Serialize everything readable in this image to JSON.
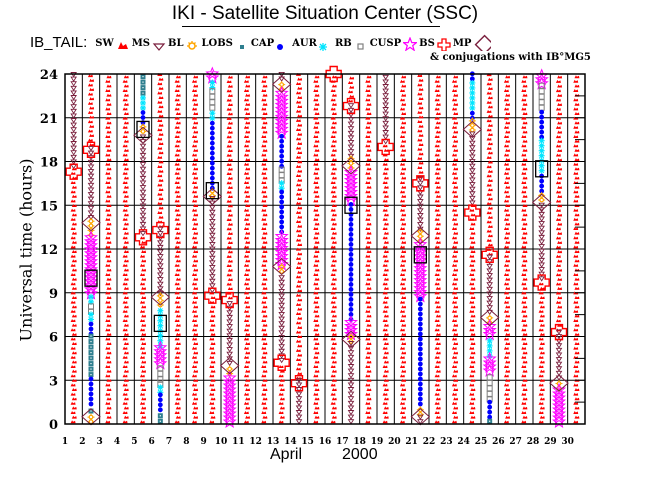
{
  "chart_data": {
    "type": "scatter",
    "title": "IKI - Satellite Situation Center (SSC)",
    "legend_heading": "IB_TAIL:",
    "subtitle": "& conjugations with IB°MG5",
    "xlabel_month": "April",
    "xlabel_year": "2000",
    "ylabel": "Universal time (hours)",
    "xlim": [
      1,
      30
    ],
    "ylim": [
      0,
      24
    ],
    "x_ticks": [
      1,
      2,
      3,
      4,
      5,
      6,
      7,
      8,
      9,
      10,
      11,
      12,
      13,
      14,
      15,
      16,
      17,
      18,
      19,
      20,
      21,
      22,
      23,
      24,
      25,
      26,
      27,
      28,
      29,
      30
    ],
    "y_ticks": [
      0,
      3,
      6,
      9,
      12,
      15,
      18,
      21,
      24
    ],
    "grid": true,
    "legend": [
      {
        "key": "SW",
        "label": "SW",
        "marker": "sw",
        "color": "#ff0000"
      },
      {
        "key": "MS",
        "label": "MS",
        "marker": "triangle-down",
        "color": "#7a1f3d"
      },
      {
        "key": "BL",
        "label": "BL",
        "marker": "sun",
        "color": "#ffa500"
      },
      {
        "key": "LOBS",
        "label": "LOBS",
        "marker": "square-small",
        "color": "#2f7f8f"
      },
      {
        "key": "CAP",
        "label": "CAP",
        "marker": "dot",
        "color": "#0000ff"
      },
      {
        "key": "AUR",
        "label": "AUR",
        "marker": "asterisk",
        "color": "#00e5ff"
      },
      {
        "key": "RB",
        "label": "RB",
        "marker": "square-open",
        "color": "#808080"
      },
      {
        "key": "CUSP",
        "label": "CUSP",
        "marker": "star",
        "color": "#ff00ff"
      },
      {
        "key": "BS",
        "label": "BS",
        "marker": "cross",
        "color": "#ff0000"
      },
      {
        "key": "MP",
        "label": "MP",
        "marker": "diamond",
        "color": "#7a1f3d"
      }
    ],
    "legend_order_labels": [
      "SW",
      "MS",
      "BL",
      "LOBS",
      "CAP",
      "AUR",
      "RB",
      "CUSP",
      "BS",
      "MP"
    ],
    "colors": {
      "sw": "#ff0000",
      "ms": "#7a1f3d",
      "bl": "#ffa500",
      "lobs": "#2f7f8f",
      "cap": "#0000ff",
      "aur": "#00e5ff",
      "rb": "#808080",
      "cusp": "#ff00ff",
      "bs": "#ff0000",
      "mp": "#7a1f3d",
      "conj": "#000000"
    },
    "days": [
      {
        "day": 1,
        "segments": [
          [
            "MS",
            17.5,
            24
          ],
          [
            "SW",
            0,
            17.5
          ]
        ],
        "bs": [
          17.3
        ],
        "mp": [],
        "conj": []
      },
      {
        "day": 2,
        "segments": [
          [
            "SW",
            19,
            24
          ],
          [
            "MS",
            14,
            19
          ],
          [
            "BL",
            12.8,
            14
          ],
          [
            "CUSP",
            8.8,
            12.8
          ],
          [
            "AUR",
            8.2,
            8.8
          ],
          [
            "RB",
            7.5,
            8.2
          ],
          [
            "AUR",
            7,
            7.5
          ],
          [
            "CAP",
            6,
            7
          ],
          [
            "LOBS",
            3.2,
            6
          ],
          [
            "CAP",
            1.2,
            3.2
          ],
          [
            "LOBS",
            0.7,
            1.2
          ],
          [
            "BL",
            0,
            0.7
          ]
        ],
        "bs": [
          18.8
        ],
        "mp": [
          13.8,
          0.5
        ],
        "conj": [
          10
        ]
      },
      {
        "day": 3,
        "segments": [
          [
            "SW",
            0,
            24
          ]
        ],
        "bs": [],
        "mp": [],
        "conj": []
      },
      {
        "day": 4,
        "segments": [
          [
            "SW",
            0,
            24
          ]
        ],
        "bs": [],
        "mp": [],
        "conj": []
      },
      {
        "day": 5,
        "segments": [
          [
            "LOBS",
            22.5,
            24
          ],
          [
            "AUR",
            21.5,
            22.5
          ],
          [
            "CAP",
            20.5,
            21.5
          ],
          [
            "BL",
            19.9,
            20.5
          ],
          [
            "MS",
            12.9,
            19.9
          ],
          [
            "SW",
            0,
            12.9
          ]
        ],
        "bs": [
          12.8
        ],
        "mp": [
          19.8
        ],
        "conj": [
          20.2
        ]
      },
      {
        "day": 6,
        "segments": [
          [
            "SW",
            13.4,
            24
          ],
          [
            "MS",
            8.8,
            13.4
          ],
          [
            "BL",
            8,
            8.8
          ],
          [
            "AUR",
            5.2,
            8
          ],
          [
            "CUSP",
            4,
            5.2
          ],
          [
            "RB",
            2.5,
            4
          ],
          [
            "AUR",
            2,
            2.5
          ],
          [
            "CAP",
            0.8,
            2
          ],
          [
            "LOBS",
            0,
            0.8
          ]
        ],
        "bs": [
          13.3
        ],
        "mp": [
          8.7
        ],
        "conj": [
          6.9
        ]
      },
      {
        "day": 7,
        "segments": [
          [
            "SW",
            0,
            24
          ]
        ],
        "bs": [],
        "mp": [],
        "conj": []
      },
      {
        "day": 8,
        "segments": [
          [
            "SW",
            0,
            24
          ]
        ],
        "bs": [],
        "mp": [],
        "conj": []
      },
      {
        "day": 9,
        "segments": [
          [
            "CUSP",
            23.6,
            24
          ],
          [
            "AUR",
            22.9,
            23.6
          ],
          [
            "RB",
            21.5,
            22.9
          ],
          [
            "AUR",
            20.8,
            21.5
          ],
          [
            "CAP",
            16,
            20.8
          ],
          [
            "BL",
            15.5,
            16
          ],
          [
            "MS",
            9,
            15.5
          ],
          [
            "SW",
            0,
            9
          ]
        ],
        "bs": [
          8.8
        ],
        "mp": [
          15.6
        ],
        "conj": [
          16
        ]
      },
      {
        "day": 10,
        "segments": [
          [
            "SW",
            8.5,
            24
          ],
          [
            "MS",
            4,
            8.5
          ],
          [
            "BL",
            3.3,
            4
          ],
          [
            "CUSP",
            0,
            3.3
          ]
        ],
        "bs": [
          8.5
        ],
        "mp": [
          4
        ],
        "conj": []
      },
      {
        "day": 11,
        "segments": [
          [
            "SW",
            0,
            24
          ]
        ],
        "bs": [],
        "mp": [],
        "conj": []
      },
      {
        "day": 12,
        "segments": [
          [
            "SW",
            0,
            24
          ]
        ],
        "bs": [],
        "mp": [],
        "conj": []
      },
      {
        "day": 13,
        "segments": [
          [
            "MS",
            23.5,
            24
          ],
          [
            "BL",
            22.8,
            23.5
          ],
          [
            "CUSP",
            19.8,
            22.8
          ],
          [
            "CAP",
            17.5,
            19.8
          ],
          [
            "RB",
            16.5,
            17.5
          ],
          [
            "AUR",
            16,
            16.5
          ],
          [
            "CAP",
            13,
            16
          ],
          [
            "CUSP",
            10.8,
            13
          ],
          [
            "BL",
            10.3,
            10.8
          ],
          [
            "MS",
            4.2,
            10.3
          ],
          [
            "SW",
            0,
            4.2
          ]
        ],
        "bs": [
          4.2
        ],
        "mp": [
          23.3,
          10.8
        ],
        "conj": []
      },
      {
        "day": 14,
        "segments": [
          [
            "SW",
            3,
            24
          ],
          [
            "MS",
            0,
            3
          ]
        ],
        "bs": [
          2.8
        ],
        "mp": [],
        "conj": []
      },
      {
        "day": 15,
        "segments": [
          [
            "SW",
            0,
            24
          ]
        ],
        "bs": [],
        "mp": [],
        "conj": []
      },
      {
        "day": 16,
        "segments": [
          [
            "SW",
            0,
            24
          ]
        ],
        "bs": [
          24
        ],
        "mp": [],
        "conj": []
      },
      {
        "day": 17,
        "segments": [
          [
            "SW",
            22,
            24
          ],
          [
            "MS",
            18.2,
            22
          ],
          [
            "BL",
            17.4,
            18.2
          ],
          [
            "CUSP",
            15.2,
            17.4
          ],
          [
            "CAP",
            7,
            15.2
          ],
          [
            "CUSP",
            6,
            7
          ],
          [
            "BL",
            5.5,
            6
          ],
          [
            "MS",
            0,
            5.5
          ]
        ],
        "bs": [
          21.8
        ],
        "mp": [
          17.7,
          5.8
        ],
        "conj": [
          15
        ]
      },
      {
        "day": 18,
        "segments": [
          [
            "SW",
            0,
            24
          ]
        ],
        "bs": [],
        "mp": [],
        "conj": []
      },
      {
        "day": 19,
        "segments": [
          [
            "MS",
            19.2,
            24
          ],
          [
            "SW",
            0,
            19.2
          ]
        ],
        "bs": [
          19
        ],
        "mp": [],
        "conj": []
      },
      {
        "day": 20,
        "segments": [
          [
            "SW",
            0,
            24
          ]
        ],
        "bs": [],
        "mp": [],
        "conj": []
      },
      {
        "day": 21,
        "segments": [
          [
            "SW",
            16.8,
            24
          ],
          [
            "MS",
            13.2,
            16.8
          ],
          [
            "BL",
            12.4,
            13.2
          ],
          [
            "CUSP",
            8.6,
            12.4
          ],
          [
            "CAP",
            1.2,
            8.6
          ],
          [
            "BL",
            0.5,
            1.2
          ],
          [
            "MS",
            0,
            0.5
          ]
        ],
        "bs": [
          16.5
        ],
        "mp": [
          12.9,
          0.5
        ],
        "conj": [
          11.6
        ]
      },
      {
        "day": 22,
        "segments": [
          [
            "SW",
            0,
            24
          ]
        ],
        "bs": [],
        "mp": [],
        "conj": []
      },
      {
        "day": 23,
        "segments": [
          [
            "SW",
            0,
            24
          ]
        ],
        "bs": [],
        "mp": [],
        "conj": []
      },
      {
        "day": 24,
        "segments": [
          [
            "CAP",
            23.5,
            24
          ],
          [
            "AUR",
            21.5,
            23.5
          ],
          [
            "CAP",
            20.8,
            21.5
          ],
          [
            "BL",
            20,
            20.8
          ],
          [
            "MS",
            15,
            20
          ],
          [
            "SW",
            0,
            15
          ]
        ],
        "bs": [
          14.5
        ],
        "mp": [
          20.2
        ],
        "conj": []
      },
      {
        "day": 25,
        "segments": [
          [
            "SW",
            11.5,
            24
          ],
          [
            "MS",
            7.5,
            11.5
          ],
          [
            "BL",
            6.8,
            7.5
          ],
          [
            "CUSP",
            6,
            6.8
          ],
          [
            "AUR",
            4.5,
            6
          ],
          [
            "CUSP",
            3.5,
            4.5
          ],
          [
            "RB",
            1.5,
            3.5
          ],
          [
            "CAP",
            0.3,
            1.5
          ],
          [
            "LOBS",
            0,
            0.3
          ]
        ],
        "bs": [
          11.6
        ],
        "mp": [
          7.3
        ],
        "conj": []
      },
      {
        "day": 26,
        "segments": [
          [
            "SW",
            0,
            24
          ]
        ],
        "bs": [],
        "mp": [],
        "conj": []
      },
      {
        "day": 27,
        "segments": [
          [
            "SW",
            0,
            24
          ]
        ],
        "bs": [],
        "mp": [],
        "conj": []
      },
      {
        "day": 28,
        "segments": [
          [
            "CUSP",
            23.2,
            24
          ],
          [
            "RB",
            21.5,
            23.2
          ],
          [
            "CAP",
            19.5,
            21.5
          ],
          [
            "AUR",
            17.2,
            19.5
          ],
          [
            "CAP",
            15.8,
            17.2
          ],
          [
            "BL",
            15.2,
            15.8
          ],
          [
            "MS",
            9.8,
            15.2
          ],
          [
            "SW",
            0,
            9.8
          ]
        ],
        "bs": [
          9.7
        ],
        "mp": [
          15.2
        ],
        "conj": [
          17.5
        ]
      },
      {
        "day": 29,
        "segments": [
          [
            "SW",
            6.3,
            24
          ],
          [
            "MS",
            3,
            6.3
          ],
          [
            "BL",
            2.3,
            3
          ],
          [
            "CUSP",
            0,
            2.3
          ]
        ],
        "bs": [
          6.3
        ],
        "mp": [
          2.8
        ],
        "conj": []
      },
      {
        "day": 30,
        "segments": [
          [
            "SW",
            0,
            24
          ]
        ],
        "bs": [],
        "mp": [],
        "conj": []
      }
    ]
  }
}
